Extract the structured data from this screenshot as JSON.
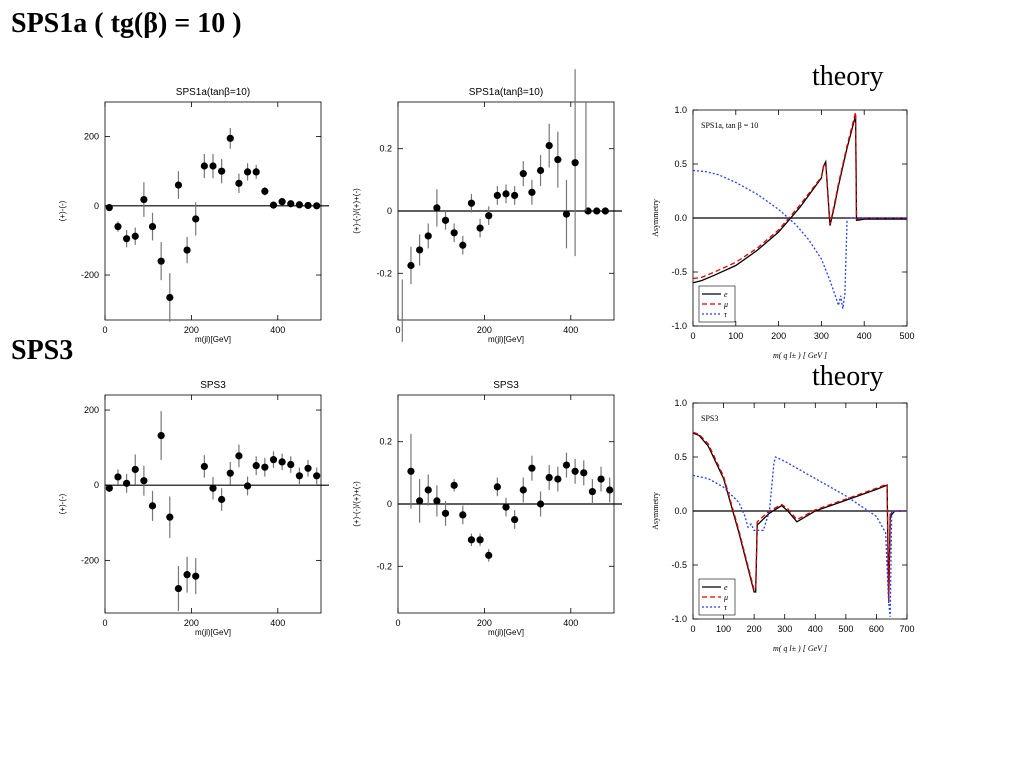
{
  "headings": {
    "sps1a": "SPS1a  ( tg(β) = 10 )",
    "sps3": "SPS3",
    "theory_top": "theory",
    "theory_bottom": "theory"
  },
  "chart_data": [
    {
      "id": "c1",
      "type": "scatter",
      "title": "SPS1a(tanβ=10)",
      "xlabel": "m(jl)[GeV]",
      "ylabel": "(+)-(-)",
      "xlim": [
        0,
        500
      ],
      "ylim": [
        -330,
        300
      ],
      "xticks": [
        0,
        200,
        400
      ],
      "yticks": [
        -200,
        0,
        200
      ],
      "ytick_labels": [
        "-200",
        "0",
        "200"
      ],
      "zero_line": true,
      "points": [
        {
          "x": 10,
          "y": -5,
          "err": 0
        },
        {
          "x": 30,
          "y": -60,
          "err": 15
        },
        {
          "x": 50,
          "y": -95,
          "err": 25
        },
        {
          "x": 70,
          "y": -88,
          "err": 25
        },
        {
          "x": 90,
          "y": 18,
          "err": 50
        },
        {
          "x": 110,
          "y": -60,
          "err": 40
        },
        {
          "x": 130,
          "y": -160,
          "err": 55
        },
        {
          "x": 150,
          "y": -265,
          "err": 70
        },
        {
          "x": 170,
          "y": 60,
          "err": 40
        },
        {
          "x": 190,
          "y": -128,
          "err": 38
        },
        {
          "x": 210,
          "y": -38,
          "err": 48
        },
        {
          "x": 230,
          "y": 115,
          "err": 35
        },
        {
          "x": 250,
          "y": 115,
          "err": 35
        },
        {
          "x": 270,
          "y": 100,
          "err": 35
        },
        {
          "x": 290,
          "y": 195,
          "err": 30
        },
        {
          "x": 310,
          "y": 65,
          "err": 28
        },
        {
          "x": 330,
          "y": 98,
          "err": 25
        },
        {
          "x": 350,
          "y": 98,
          "err": 20
        },
        {
          "x": 370,
          "y": 42,
          "err": 12
        },
        {
          "x": 390,
          "y": 2,
          "err": 8
        },
        {
          "x": 410,
          "y": 12,
          "err": 5
        },
        {
          "x": 430,
          "y": 6,
          "err": 3
        },
        {
          "x": 450,
          "y": 3,
          "err": 0
        },
        {
          "x": 470,
          "y": 1,
          "err": 0
        },
        {
          "x": 490,
          "y": 0,
          "err": 0
        }
      ]
    },
    {
      "id": "c2",
      "type": "scatter",
      "title": "SPS1a(tanβ=10)",
      "xlabel": "m(jl)[GeV]",
      "ylabel": "(+)-(-)/(+)+(-)",
      "xlim": [
        0,
        500
      ],
      "ylim": [
        -0.35,
        0.35
      ],
      "xticks": [
        0,
        200,
        400
      ],
      "yticks": [
        -0.2,
        0,
        0.2
      ],
      "ytick_labels": [
        "-0.2",
        "0",
        "0.2"
      ],
      "zero_line": true,
      "points": [
        {
          "x": 10,
          "y": -0.32,
          "err": 0.1,
          "nodot": true
        },
        {
          "x": 30,
          "y": -0.175,
          "err": 0.06
        },
        {
          "x": 50,
          "y": -0.125,
          "err": 0.05
        },
        {
          "x": 70,
          "y": -0.08,
          "err": 0.04
        },
        {
          "x": 90,
          "y": 0.01,
          "err": 0.06
        },
        {
          "x": 110,
          "y": -0.03,
          "err": 0.03
        },
        {
          "x": 130,
          "y": -0.07,
          "err": 0.03
        },
        {
          "x": 150,
          "y": -0.11,
          "err": 0.03
        },
        {
          "x": 170,
          "y": 0.025,
          "err": 0.03
        },
        {
          "x": 190,
          "y": -0.055,
          "err": 0.03
        },
        {
          "x": 210,
          "y": -0.015,
          "err": 0.03
        },
        {
          "x": 230,
          "y": 0.05,
          "err": 0.03
        },
        {
          "x": 250,
          "y": 0.055,
          "err": 0.03
        },
        {
          "x": 270,
          "y": 0.05,
          "err": 0.03
        },
        {
          "x": 290,
          "y": 0.12,
          "err": 0.04
        },
        {
          "x": 310,
          "y": 0.06,
          "err": 0.04
        },
        {
          "x": 330,
          "y": 0.13,
          "err": 0.05
        },
        {
          "x": 350,
          "y": 0.21,
          "err": 0.07
        },
        {
          "x": 370,
          "y": 0.165,
          "err": 0.09
        },
        {
          "x": 390,
          "y": -0.01,
          "err": 0.11
        },
        {
          "x": 410,
          "y": 0.155,
          "err": 0.3
        },
        {
          "x": 440,
          "y": 0.0,
          "err": 0
        },
        {
          "x": 460,
          "y": 0.0,
          "err": 0
        },
        {
          "x": 480,
          "y": 0.0,
          "err": 0
        }
      ],
      "extra_lines": [
        {
          "x": 435,
          "y0": 0.0,
          "y1": 0.35
        }
      ]
    },
    {
      "id": "c3",
      "type": "line",
      "title": "",
      "annotation": "SPS1a, tan β = 10",
      "xlabel": "m( q l± )  [ GeV ]",
      "ylabel": "Asymmetry",
      "xlim": [
        0,
        500
      ],
      "ylim": [
        -1.0,
        1.0
      ],
      "xticks": [
        0,
        100,
        200,
        300,
        400,
        500
      ],
      "yticks": [
        -1.0,
        -0.5,
        0.0,
        0.5,
        1.0
      ],
      "ytick_labels": [
        "-1.0",
        "-0.5",
        "0.0",
        "0.5",
        "1.0"
      ],
      "zero_line": true,
      "legend_position": "bottom-left",
      "legend": [
        {
          "label": "e",
          "color": "#000000",
          "dash": ""
        },
        {
          "label": "μ",
          "color": "#e00000",
          "dash": "5,3"
        },
        {
          "label": "τ",
          "color": "#2040ff",
          "dash": "2,2"
        }
      ],
      "series": [
        {
          "name": "e",
          "color": "#000000",
          "dash": "",
          "x": [
            0,
            20,
            50,
            100,
            150,
            200,
            250,
            300,
            305,
            310,
            320,
            330,
            340,
            360,
            380,
            382,
            385,
            400,
            450,
            500
          ],
          "y": [
            -0.6,
            -0.58,
            -0.53,
            -0.44,
            -0.3,
            -0.13,
            0.1,
            0.37,
            0.48,
            0.52,
            -0.07,
            0.1,
            0.3,
            0.65,
            0.95,
            -0.02,
            -0.02,
            -0.01,
            -0.01,
            -0.01
          ]
        },
        {
          "name": "μ",
          "color": "#e00000",
          "dash": "5,3",
          "x": [
            0,
            20,
            50,
            100,
            150,
            200,
            250,
            300,
            305,
            310,
            320,
            330,
            340,
            360,
            380,
            382,
            385,
            400,
            450,
            500
          ],
          "y": [
            -0.56,
            -0.55,
            -0.5,
            -0.41,
            -0.28,
            -0.11,
            0.12,
            0.38,
            0.48,
            0.5,
            -0.06,
            0.12,
            0.32,
            0.67,
            0.98,
            -0.01,
            -0.01,
            0.0,
            0.0,
            0.0
          ]
        },
        {
          "name": "τ",
          "color": "#2040ff",
          "dash": "2,2",
          "x": [
            0,
            30,
            60,
            100,
            150,
            200,
            240,
            270,
            300,
            320,
            335,
            340,
            345,
            350,
            355,
            360,
            400,
            450,
            500
          ],
          "y": [
            0.44,
            0.43,
            0.4,
            0.33,
            0.22,
            0.08,
            -0.06,
            -0.2,
            -0.38,
            -0.58,
            -0.75,
            -0.81,
            -0.72,
            -0.84,
            -0.7,
            0.0,
            0.0,
            0.0,
            0.0
          ]
        }
      ]
    },
    {
      "id": "c4",
      "type": "scatter",
      "title": "SPS3",
      "xlabel": "m(jl)[GeV]",
      "ylabel": "(+)-(-)",
      "xlim": [
        0,
        500
      ],
      "ylim": [
        -340,
        240
      ],
      "xticks": [
        0,
        200,
        400
      ],
      "yticks": [
        -200,
        0,
        200
      ],
      "ytick_labels": [
        "-200",
        "0",
        "200"
      ],
      "zero_line": true,
      "points": [
        {
          "x": 10,
          "y": -8,
          "err": 0
        },
        {
          "x": 30,
          "y": 22,
          "err": 20
        },
        {
          "x": 50,
          "y": 5,
          "err": 25
        },
        {
          "x": 70,
          "y": 42,
          "err": 40
        },
        {
          "x": 90,
          "y": 12,
          "err": 40
        },
        {
          "x": 110,
          "y": -55,
          "err": 40
        },
        {
          "x": 130,
          "y": 132,
          "err": 65
        },
        {
          "x": 150,
          "y": -85,
          "err": 55
        },
        {
          "x": 170,
          "y": -275,
          "err": 60
        },
        {
          "x": 190,
          "y": -238,
          "err": 48
        },
        {
          "x": 210,
          "y": -242,
          "err": 48
        },
        {
          "x": 230,
          "y": 50,
          "err": 30
        },
        {
          "x": 250,
          "y": -8,
          "err": 30
        },
        {
          "x": 270,
          "y": -38,
          "err": 30
        },
        {
          "x": 290,
          "y": 32,
          "err": 30
        },
        {
          "x": 310,
          "y": 78,
          "err": 30
        },
        {
          "x": 330,
          "y": -2,
          "err": 25
        },
        {
          "x": 350,
          "y": 52,
          "err": 25
        },
        {
          "x": 370,
          "y": 48,
          "err": 25
        },
        {
          "x": 390,
          "y": 68,
          "err": 22
        },
        {
          "x": 410,
          "y": 62,
          "err": 22
        },
        {
          "x": 430,
          "y": 55,
          "err": 22
        },
        {
          "x": 450,
          "y": 25,
          "err": 22
        },
        {
          "x": 470,
          "y": 45,
          "err": 22
        },
        {
          "x": 490,
          "y": 25,
          "err": 22
        }
      ]
    },
    {
      "id": "c5",
      "type": "scatter",
      "title": "SPS3",
      "xlabel": "m(jl)[GeV]",
      "ylabel": "(+)-(-)/(+)+(-)",
      "xlim": [
        0,
        500
      ],
      "ylim": [
        -0.35,
        0.35
      ],
      "xticks": [
        0,
        200,
        400
      ],
      "yticks": [
        -0.2,
        0,
        0.2
      ],
      "ytick_labels": [
        "-0.2",
        "0",
        "0.2"
      ],
      "zero_line": true,
      "points": [
        {
          "x": 30,
          "y": 0.105,
          "err": 0.12
        },
        {
          "x": 50,
          "y": 0.01,
          "err": 0.07
        },
        {
          "x": 70,
          "y": 0.045,
          "err": 0.05
        },
        {
          "x": 90,
          "y": 0.01,
          "err": 0.05
        },
        {
          "x": 110,
          "y": -0.03,
          "err": 0.04
        },
        {
          "x": 130,
          "y": 0.06,
          "err": 0.02
        },
        {
          "x": 150,
          "y": -0.035,
          "err": 0.03
        },
        {
          "x": 170,
          "y": -0.115,
          "err": 0.02
        },
        {
          "x": 190,
          "y": -0.115,
          "err": 0.02
        },
        {
          "x": 210,
          "y": -0.165,
          "err": 0.02
        },
        {
          "x": 230,
          "y": 0.055,
          "err": 0.03
        },
        {
          "x": 250,
          "y": -0.01,
          "err": 0.03
        },
        {
          "x": 270,
          "y": -0.05,
          "err": 0.03
        },
        {
          "x": 290,
          "y": 0.045,
          "err": 0.04
        },
        {
          "x": 310,
          "y": 0.115,
          "err": 0.04
        },
        {
          "x": 330,
          "y": 0.0,
          "err": 0.04
        },
        {
          "x": 350,
          "y": 0.085,
          "err": 0.04
        },
        {
          "x": 370,
          "y": 0.08,
          "err": 0.04
        },
        {
          "x": 390,
          "y": 0.125,
          "err": 0.04
        },
        {
          "x": 410,
          "y": 0.105,
          "err": 0.04
        },
        {
          "x": 430,
          "y": 0.1,
          "err": 0.04
        },
        {
          "x": 450,
          "y": 0.04,
          "err": 0.04
        },
        {
          "x": 470,
          "y": 0.08,
          "err": 0.04
        },
        {
          "x": 490,
          "y": 0.045,
          "err": 0.04
        }
      ]
    },
    {
      "id": "c6",
      "type": "line",
      "title": "",
      "annotation": "SPS3",
      "xlabel": "m( q l± )  [ GeV ]",
      "ylabel": "Asymmetry",
      "xlim": [
        0,
        700
      ],
      "ylim": [
        -1.0,
        1.0
      ],
      "xticks": [
        0,
        100,
        200,
        300,
        400,
        500,
        600,
        700
      ],
      "yticks": [
        -1.0,
        -0.5,
        0.0,
        0.5,
        1.0
      ],
      "ytick_labels": [
        "-1.0",
        "-0.5",
        "0.0",
        "0.5",
        "1.0"
      ],
      "zero_line": true,
      "legend_position": "bottom-left",
      "legend": [
        {
          "label": "e",
          "color": "#000000",
          "dash": ""
        },
        {
          "label": "μ",
          "color": "#e00000",
          "dash": "5,3"
        },
        {
          "label": "τ",
          "color": "#2040ff",
          "dash": "2,2"
        }
      ],
      "series": [
        {
          "name": "e",
          "color": "#000000",
          "dash": "",
          "x": [
            0,
            20,
            50,
            100,
            150,
            200,
            205,
            210,
            250,
            290,
            310,
            340,
            400,
            500,
            600,
            635,
            640,
            645,
            660,
            700
          ],
          "y": [
            0.72,
            0.7,
            0.6,
            0.3,
            -0.2,
            -0.75,
            -0.75,
            -0.13,
            -0.02,
            0.05,
            0.0,
            -0.1,
            0.0,
            0.1,
            0.2,
            0.24,
            -0.85,
            -0.05,
            0.0,
            0.0
          ]
        },
        {
          "name": "μ",
          "color": "#e00000",
          "dash": "5,3",
          "x": [
            0,
            20,
            50,
            100,
            150,
            200,
            205,
            210,
            250,
            290,
            310,
            340,
            400,
            500,
            600,
            635,
            640,
            645,
            660,
            700
          ],
          "y": [
            0.73,
            0.71,
            0.62,
            0.32,
            -0.18,
            -0.73,
            -0.73,
            -0.1,
            0.0,
            0.06,
            0.02,
            -0.08,
            0.01,
            0.11,
            0.21,
            0.25,
            -0.83,
            -0.03,
            0.0,
            0.0
          ]
        },
        {
          "name": "τ",
          "color": "#2040ff",
          "dash": "2,2",
          "x": [
            0,
            50,
            100,
            150,
            170,
            180,
            190,
            200,
            230,
            250,
            265,
            270,
            300,
            400,
            500,
            600,
            630,
            640,
            645,
            650,
            700
          ],
          "y": [
            0.33,
            0.3,
            0.22,
            0.08,
            -0.05,
            -0.15,
            -0.12,
            -0.18,
            -0.18,
            0.0,
            0.45,
            0.5,
            0.46,
            0.3,
            0.14,
            -0.05,
            -0.2,
            -0.85,
            -0.98,
            0.0,
            0.0
          ]
        }
      ]
    }
  ]
}
